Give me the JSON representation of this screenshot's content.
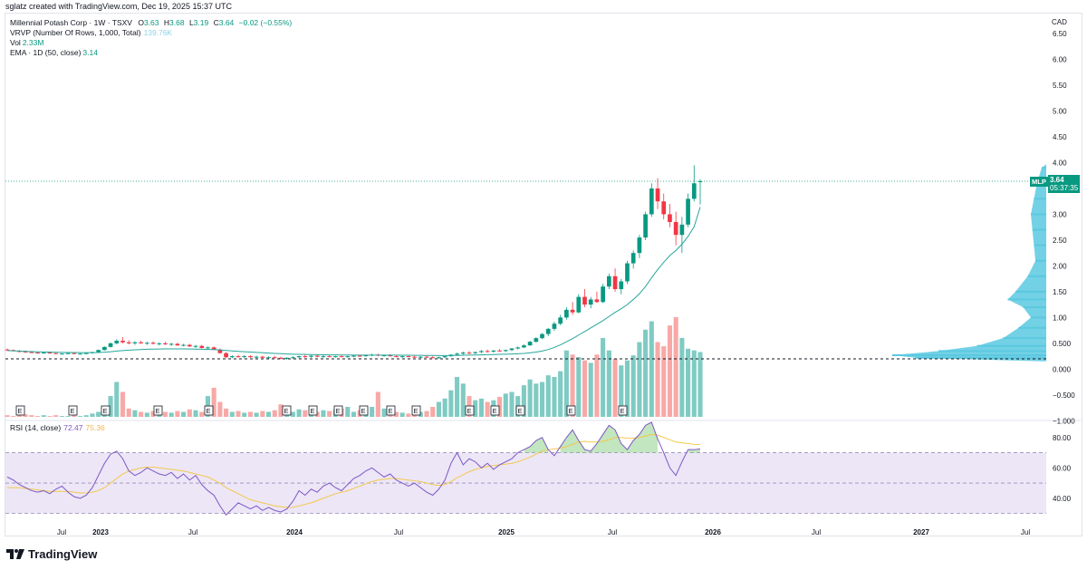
{
  "header": {
    "creator": "sglatz created with TradingView.com, Dec 19, 2025 15:37 UTC",
    "symbol_line": {
      "name": "Millennial Potash Corp · 1W · TSXV",
      "open_label": "O",
      "open": "3.63",
      "high_label": "H",
      "high": "3.68",
      "low_label": "L",
      "low": "3.19",
      "close_label": "C",
      "close": "3.64",
      "change": "−0.02 (−0.55%)"
    },
    "vrvp_label": "VRVP (Number Of Rows, 1,000, Total)",
    "vrvp_value": "139.76K",
    "vol_label": "Vol",
    "vol_value": "2.33M",
    "ema_label": "EMA · 1D (50, close)",
    "ema_value": "3.14",
    "rsi_label": "RSI (14, close)",
    "rsi_value": "72.47",
    "rsi_ma_value": "75.36",
    "currency": "CAD"
  },
  "price_tag": {
    "symbol": "MLP",
    "price": "3.64",
    "countdown": "05:37:35"
  },
  "brand": {
    "name": "TradingView"
  },
  "colors": {
    "up": "#089981",
    "down": "#f23645",
    "volume_up": "#7fcbc3",
    "volume_down": "#f7a9a7",
    "ema": "#26a69a",
    "vrvp": "#5bc9e0",
    "rsi": "#7e57c2",
    "rsi_ma": "#f2c94c",
    "rsi_band": "#ece6f7"
  },
  "chart_data": {
    "type": "candlestick",
    "timeframe": "1W",
    "symbol": "Millennial Potash Corp",
    "exchange": "TSXV",
    "price_axis": {
      "ticks": [
        "6.50",
        "6.00",
        "5.50",
        "5.00",
        "4.50",
        "4.00",
        "3.50",
        "3.00",
        "2.50",
        "2.00",
        "1.50",
        "1.00",
        "0.500",
        "0.000",
        "−0.500",
        "−1.000"
      ],
      "range": [
        -1.1,
        6.8
      ]
    },
    "time_axis": {
      "ticks": [
        {
          "label": "Jul",
          "bold": false
        },
        {
          "label": "2023",
          "bold": true
        },
        {
          "label": "Jul",
          "bold": false
        },
        {
          "label": "2024",
          "bold": true
        },
        {
          "label": "Jul",
          "bold": false
        },
        {
          "label": "2025",
          "bold": true
        },
        {
          "label": "Jul",
          "bold": false
        },
        {
          "label": "2026",
          "bold": true
        },
        {
          "label": "Jul",
          "bold": false
        },
        {
          "label": "2027",
          "bold": true
        },
        {
          "label": "Jul",
          "bold": false
        }
      ]
    },
    "horizontal_line": 0.2,
    "last_price": 3.64,
    "candles": [
      [
        0.38,
        0.4,
        0.36,
        0.37
      ],
      [
        0.37,
        0.38,
        0.34,
        0.35
      ],
      [
        0.35,
        0.37,
        0.33,
        0.34
      ],
      [
        0.34,
        0.36,
        0.32,
        0.33
      ],
      [
        0.33,
        0.34,
        0.31,
        0.32
      ],
      [
        0.32,
        0.33,
        0.3,
        0.31
      ],
      [
        0.31,
        0.33,
        0.3,
        0.32
      ],
      [
        0.32,
        0.33,
        0.3,
        0.31
      ],
      [
        0.31,
        0.32,
        0.29,
        0.3
      ],
      [
        0.3,
        0.31,
        0.29,
        0.3
      ],
      [
        0.3,
        0.32,
        0.29,
        0.31
      ],
      [
        0.31,
        0.32,
        0.29,
        0.3
      ],
      [
        0.3,
        0.31,
        0.29,
        0.3
      ],
      [
        0.3,
        0.32,
        0.29,
        0.31
      ],
      [
        0.31,
        0.34,
        0.3,
        0.33
      ],
      [
        0.33,
        0.38,
        0.32,
        0.37
      ],
      [
        0.37,
        0.44,
        0.36,
        0.43
      ],
      [
        0.43,
        0.52,
        0.42,
        0.5
      ],
      [
        0.5,
        0.58,
        0.48,
        0.55
      ],
      [
        0.55,
        0.62,
        0.5,
        0.52
      ],
      [
        0.52,
        0.56,
        0.48,
        0.5
      ],
      [
        0.5,
        0.54,
        0.47,
        0.52
      ],
      [
        0.52,
        0.55,
        0.49,
        0.5
      ],
      [
        0.5,
        0.53,
        0.47,
        0.51
      ],
      [
        0.51,
        0.54,
        0.48,
        0.49
      ],
      [
        0.49,
        0.52,
        0.46,
        0.5
      ],
      [
        0.5,
        0.53,
        0.47,
        0.48
      ],
      [
        0.48,
        0.51,
        0.45,
        0.49
      ],
      [
        0.49,
        0.51,
        0.45,
        0.46
      ],
      [
        0.46,
        0.49,
        0.44,
        0.47
      ],
      [
        0.47,
        0.49,
        0.43,
        0.44
      ],
      [
        0.44,
        0.47,
        0.41,
        0.45
      ],
      [
        0.45,
        0.47,
        0.4,
        0.41
      ],
      [
        0.41,
        0.44,
        0.38,
        0.42
      ],
      [
        0.42,
        0.44,
        0.37,
        0.38
      ],
      [
        0.38,
        0.4,
        0.3,
        0.31
      ],
      [
        0.31,
        0.33,
        0.21,
        0.23
      ],
      [
        0.23,
        0.27,
        0.21,
        0.25
      ],
      [
        0.25,
        0.28,
        0.22,
        0.24
      ],
      [
        0.24,
        0.27,
        0.21,
        0.25
      ],
      [
        0.25,
        0.27,
        0.22,
        0.23
      ],
      [
        0.23,
        0.26,
        0.21,
        0.24
      ],
      [
        0.24,
        0.26,
        0.21,
        0.22
      ],
      [
        0.22,
        0.25,
        0.2,
        0.23
      ],
      [
        0.23,
        0.26,
        0.21,
        0.22
      ],
      [
        0.22,
        0.24,
        0.19,
        0.2
      ],
      [
        0.2,
        0.23,
        0.18,
        0.22
      ],
      [
        0.22,
        0.25,
        0.2,
        0.23
      ],
      [
        0.23,
        0.26,
        0.21,
        0.25
      ],
      [
        0.25,
        0.28,
        0.22,
        0.24
      ],
      [
        0.24,
        0.27,
        0.22,
        0.26
      ],
      [
        0.26,
        0.28,
        0.23,
        0.24
      ],
      [
        0.24,
        0.27,
        0.22,
        0.25
      ],
      [
        0.25,
        0.27,
        0.23,
        0.24
      ],
      [
        0.24,
        0.26,
        0.22,
        0.25
      ],
      [
        0.25,
        0.27,
        0.23,
        0.24
      ],
      [
        0.24,
        0.26,
        0.22,
        0.25
      ],
      [
        0.25,
        0.27,
        0.23,
        0.26
      ],
      [
        0.26,
        0.28,
        0.24,
        0.25
      ],
      [
        0.25,
        0.28,
        0.24,
        0.27
      ],
      [
        0.27,
        0.3,
        0.25,
        0.28
      ],
      [
        0.28,
        0.3,
        0.25,
        0.26
      ],
      [
        0.26,
        0.28,
        0.24,
        0.27
      ],
      [
        0.27,
        0.29,
        0.24,
        0.25
      ],
      [
        0.25,
        0.27,
        0.23,
        0.24
      ],
      [
        0.24,
        0.26,
        0.22,
        0.25
      ],
      [
        0.25,
        0.27,
        0.23,
        0.24
      ],
      [
        0.24,
        0.26,
        0.22,
        0.23
      ],
      [
        0.23,
        0.25,
        0.21,
        0.24
      ],
      [
        0.24,
        0.26,
        0.22,
        0.23
      ],
      [
        0.23,
        0.25,
        0.21,
        0.22
      ],
      [
        0.22,
        0.24,
        0.2,
        0.23
      ],
      [
        0.23,
        0.26,
        0.21,
        0.25
      ],
      [
        0.25,
        0.29,
        0.24,
        0.28
      ],
      [
        0.28,
        0.32,
        0.26,
        0.3
      ],
      [
        0.3,
        0.34,
        0.28,
        0.32
      ],
      [
        0.32,
        0.35,
        0.29,
        0.31
      ],
      [
        0.31,
        0.34,
        0.29,
        0.33
      ],
      [
        0.33,
        0.37,
        0.31,
        0.35
      ],
      [
        0.35,
        0.38,
        0.32,
        0.34
      ],
      [
        0.34,
        0.37,
        0.32,
        0.36
      ],
      [
        0.36,
        0.39,
        0.34,
        0.35
      ],
      [
        0.35,
        0.38,
        0.33,
        0.37
      ],
      [
        0.37,
        0.41,
        0.35,
        0.4
      ],
      [
        0.4,
        0.44,
        0.38,
        0.42
      ],
      [
        0.42,
        0.48,
        0.41,
        0.46
      ],
      [
        0.46,
        0.55,
        0.45,
        0.53
      ],
      [
        0.53,
        0.62,
        0.51,
        0.6
      ],
      [
        0.6,
        0.7,
        0.58,
        0.68
      ],
      [
        0.68,
        0.8,
        0.64,
        0.78
      ],
      [
        0.78,
        0.92,
        0.74,
        0.88
      ],
      [
        0.88,
        1.05,
        0.85,
        1.0
      ],
      [
        1.0,
        1.2,
        0.96,
        1.15
      ],
      [
        1.15,
        1.3,
        1.05,
        1.1
      ],
      [
        1.1,
        1.45,
        1.08,
        1.4
      ],
      [
        1.4,
        1.55,
        1.2,
        1.25
      ],
      [
        1.25,
        1.4,
        1.18,
        1.35
      ],
      [
        1.35,
        1.5,
        1.28,
        1.3
      ],
      [
        1.3,
        1.65,
        1.28,
        1.6
      ],
      [
        1.6,
        1.85,
        1.55,
        1.8
      ],
      [
        1.8,
        1.95,
        1.5,
        1.55
      ],
      [
        1.55,
        1.75,
        1.45,
        1.7
      ],
      [
        1.7,
        2.1,
        1.65,
        2.05
      ],
      [
        2.05,
        2.3,
        1.95,
        2.25
      ],
      [
        2.25,
        2.6,
        2.15,
        2.55
      ],
      [
        2.55,
        3.05,
        2.5,
        3.0
      ],
      [
        3.0,
        3.6,
        2.95,
        3.5
      ],
      [
        3.5,
        3.7,
        3.1,
        3.25
      ],
      [
        3.25,
        3.4,
        2.9,
        3.0
      ],
      [
        3.0,
        3.2,
        2.75,
        2.85
      ],
      [
        2.85,
        3.05,
        2.4,
        2.6
      ],
      [
        2.6,
        2.95,
        2.25,
        2.8
      ],
      [
        2.8,
        3.4,
        2.75,
        3.3
      ],
      [
        3.3,
        3.95,
        3.25,
        3.6
      ],
      [
        3.63,
        3.68,
        3.19,
        3.64
      ]
    ],
    "ema_50": [
      0.36,
      0.355,
      0.35,
      0.345,
      0.34,
      0.335,
      0.332,
      0.33,
      0.327,
      0.325,
      0.323,
      0.322,
      0.32,
      0.32,
      0.32,
      0.322,
      0.328,
      0.337,
      0.35,
      0.36,
      0.368,
      0.375,
      0.38,
      0.385,
      0.388,
      0.39,
      0.392,
      0.393,
      0.393,
      0.392,
      0.39,
      0.388,
      0.385,
      0.382,
      0.378,
      0.372,
      0.362,
      0.353,
      0.345,
      0.338,
      0.331,
      0.324,
      0.317,
      0.311,
      0.305,
      0.299,
      0.294,
      0.29,
      0.287,
      0.284,
      0.282,
      0.28,
      0.278,
      0.276,
      0.275,
      0.274,
      0.273,
      0.272,
      0.272,
      0.272,
      0.272,
      0.272,
      0.272,
      0.272,
      0.271,
      0.27,
      0.269,
      0.268,
      0.267,
      0.266,
      0.264,
      0.263,
      0.263,
      0.264,
      0.266,
      0.269,
      0.271,
      0.274,
      0.277,
      0.28,
      0.283,
      0.286,
      0.289,
      0.293,
      0.298,
      0.305,
      0.315,
      0.33,
      0.35,
      0.38,
      0.42,
      0.47,
      0.53,
      0.59,
      0.66,
      0.73,
      0.8,
      0.87,
      0.94,
      1.02,
      1.1,
      1.17,
      1.25,
      1.35,
      1.46,
      1.6,
      1.77,
      1.93,
      2.07,
      2.2,
      2.3,
      2.42,
      2.57,
      2.76,
      3.14
    ],
    "volume": [
      0.02,
      0.01,
      0.02,
      0.03,
      0.02,
      0.01,
      0.02,
      0.01,
      0.02,
      0.01,
      0.01,
      0.02,
      0.01,
      0.02,
      0.04,
      0.06,
      0.12,
      0.25,
      0.42,
      0.3,
      0.1,
      0.08,
      0.06,
      0.05,
      0.07,
      0.08,
      0.06,
      0.05,
      0.07,
      0.06,
      0.09,
      0.08,
      0.06,
      0.25,
      0.35,
      0.18,
      0.1,
      0.06,
      0.07,
      0.05,
      0.06,
      0.05,
      0.07,
      0.06,
      0.08,
      0.15,
      0.08,
      0.06,
      0.09,
      0.08,
      0.07,
      0.06,
      0.08,
      0.07,
      0.09,
      0.1,
      0.12,
      0.06,
      0.08,
      0.1,
      0.12,
      0.3,
      0.1,
      0.08,
      0.06,
      0.05,
      0.04,
      0.05,
      0.06,
      0.07,
      0.12,
      0.18,
      0.22,
      0.32,
      0.48,
      0.4,
      0.25,
      0.2,
      0.22,
      0.18,
      0.2,
      0.24,
      0.28,
      0.3,
      0.25,
      0.38,
      0.45,
      0.4,
      0.42,
      0.5,
      0.48,
      0.55,
      0.8,
      0.75,
      0.72,
      0.68,
      0.65,
      0.75,
      0.95,
      0.8,
      0.7,
      0.62,
      0.68,
      0.74,
      0.9,
      1.05,
      1.15,
      0.9,
      0.85,
      1.1,
      1.2,
      0.95,
      0.82,
      0.8,
      0.78
    ],
    "vrvp_profile": [
      {
        "price": 3.9,
        "volume": 0.03
      },
      {
        "price": 3.6,
        "volume": 0.06
      },
      {
        "price": 3.3,
        "volume": 0.08
      },
      {
        "price": 3.0,
        "volume": 0.1
      },
      {
        "price": 2.7,
        "volume": 0.09
      },
      {
        "price": 2.4,
        "volume": 0.08
      },
      {
        "price": 2.1,
        "volume": 0.07
      },
      {
        "price": 1.8,
        "volume": 0.12
      },
      {
        "price": 1.5,
        "volume": 0.2
      },
      {
        "price": 1.35,
        "volume": 0.25
      },
      {
        "price": 1.2,
        "volume": 0.15
      },
      {
        "price": 1.0,
        "volume": 0.1
      },
      {
        "price": 0.8,
        "volume": 0.18
      },
      {
        "price": 0.6,
        "volume": 0.28
      },
      {
        "price": 0.45,
        "volume": 0.45
      },
      {
        "price": 0.35,
        "volume": 0.7
      },
      {
        "price": 0.27,
        "volume": 1.0
      },
      {
        "price": 0.22,
        "volume": 0.85
      }
    ],
    "earnings_markers": 15,
    "rsi": {
      "ticks": [
        "80.00",
        "60.00",
        "40.00"
      ],
      "range": [
        25,
        90
      ],
      "upper": 70,
      "middle": 50,
      "lower": 30,
      "rsi_values": [
        54,
        52,
        49,
        47,
        45,
        44,
        45,
        43,
        46,
        48,
        44,
        41,
        40,
        42,
        47,
        55,
        63,
        69,
        71,
        66,
        58,
        55,
        57,
        60,
        58,
        56,
        55,
        57,
        53,
        56,
        52,
        55,
        49,
        45,
        42,
        35,
        29,
        33,
        37,
        35,
        33,
        35,
        32,
        34,
        32,
        31,
        33,
        38,
        45,
        42,
        46,
        44,
        48,
        50,
        47,
        45,
        49,
        53,
        55,
        58,
        60,
        57,
        54,
        56,
        52,
        50,
        48,
        50,
        47,
        44,
        42,
        46,
        52,
        63,
        70,
        62,
        66,
        64,
        60,
        63,
        59,
        62,
        64,
        66,
        70,
        72,
        74,
        78,
        80,
        72,
        68,
        74,
        80,
        85,
        78,
        72,
        71,
        76,
        82,
        88,
        85,
        76,
        72,
        78,
        82,
        88,
        90,
        79,
        70,
        60,
        55,
        64,
        72,
        72,
        72.47
      ],
      "rsi_ma_values": [
        47,
        47,
        47,
        46.5,
        46,
        45.5,
        45,
        44.5,
        44.5,
        44.5,
        44.5,
        44,
        43.5,
        43.5,
        44,
        45,
        47,
        50,
        53,
        56,
        58,
        59,
        60,
        60.5,
        60.5,
        60,
        59.5,
        59,
        58.5,
        58,
        57,
        56,
        55,
        54,
        52,
        50,
        47,
        45,
        43,
        41,
        39,
        38,
        37,
        36,
        35,
        34.5,
        34,
        34,
        35,
        36,
        37,
        38.5,
        40,
        41.5,
        43,
        44,
        45,
        46.5,
        48,
        49.5,
        51,
        52,
        52.5,
        53,
        53,
        52.5,
        52,
        51.5,
        51,
        50,
        49,
        48.5,
        49,
        51,
        53.5,
        55.5,
        57.5,
        59,
        60,
        61,
        61.5,
        62,
        62.5,
        63,
        64,
        65.5,
        67,
        69,
        71,
        72,
        72.5,
        73,
        74,
        75.5,
        77,
        77.5,
        77,
        77,
        77.5,
        78.5,
        80,
        80,
        79.5,
        79.5,
        80,
        81,
        82,
        81.5,
        80,
        78.5,
        77,
        76.5,
        76,
        75.5,
        75.36
      ]
    }
  }
}
